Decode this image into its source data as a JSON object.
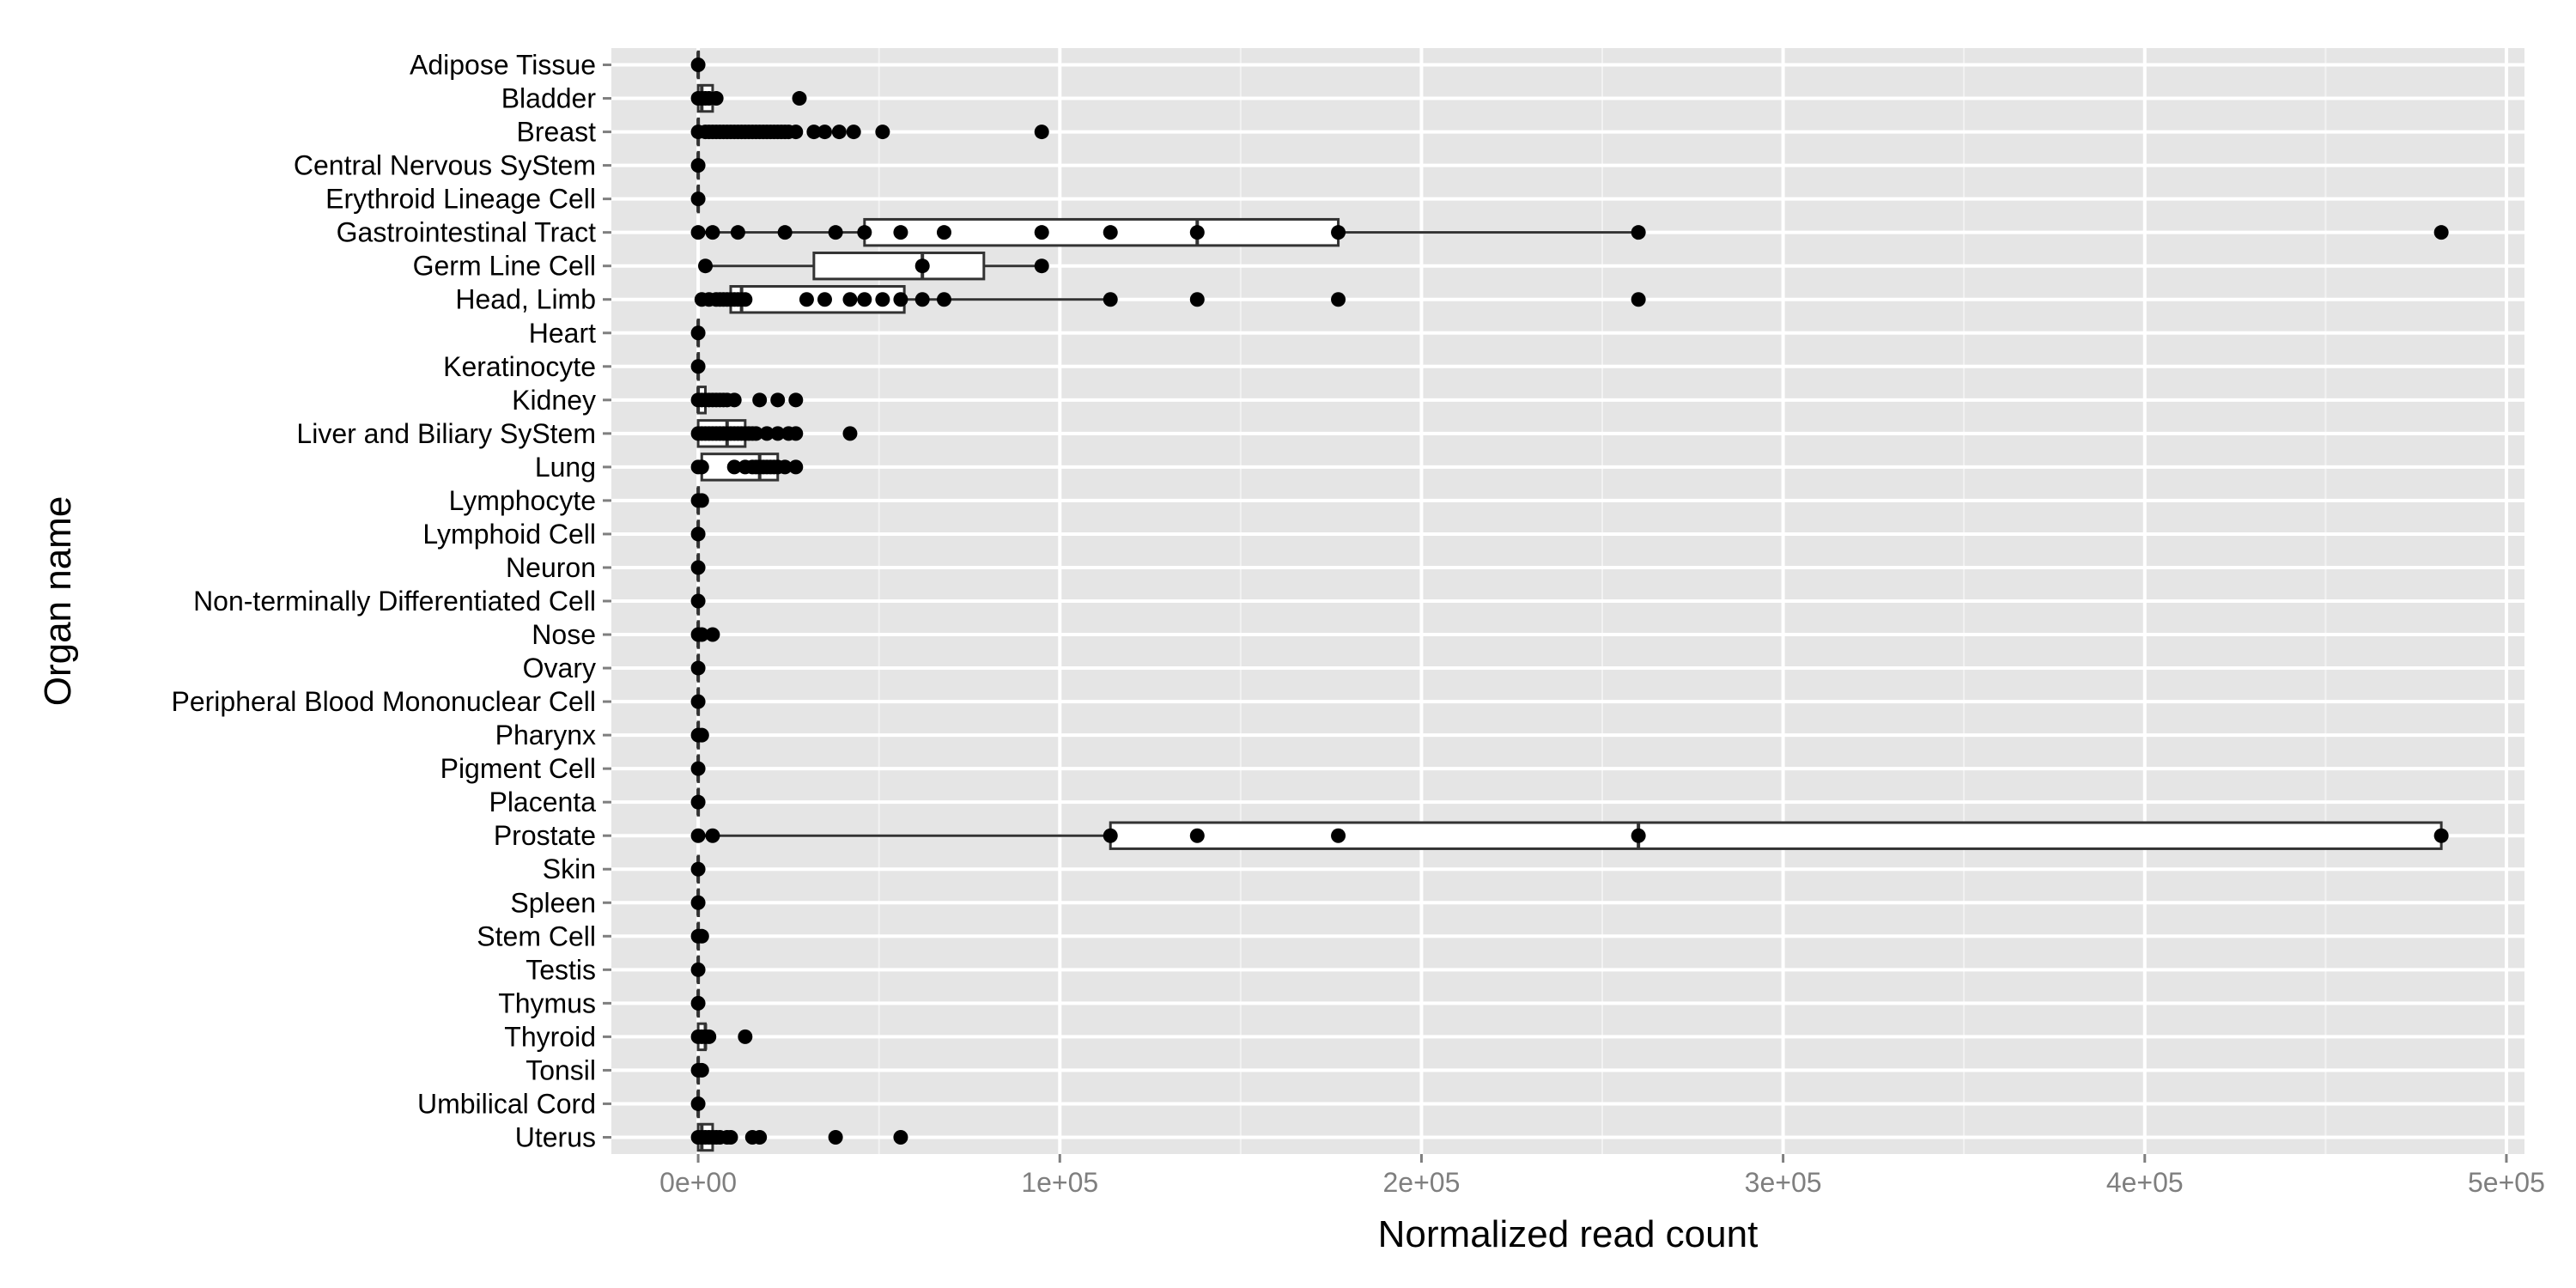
{
  "chart_data": {
    "type": "boxplot",
    "orientation": "horizontal",
    "xlabel": "Normalized read count",
    "ylabel": "Organ name",
    "xlim": [
      -24000,
      505000
    ],
    "x_ticks": [
      0,
      100000,
      200000,
      300000,
      400000,
      500000
    ],
    "x_tick_labels": [
      "0e+00",
      "1e+05",
      "2e+05",
      "3e+05",
      "4e+05",
      "5e+05"
    ],
    "grid": true,
    "background": "#e5e5e5",
    "categories": [
      "Adipose Tissue",
      "Bladder",
      "Breast",
      "Central Nervous SyStem",
      "Erythroid Lineage Cell",
      "Gastrointestinal Tract",
      "Germ Line Cell",
      "Head, Limb",
      "Heart",
      "Keratinocyte",
      "Kidney",
      "Liver and Biliary SyStem",
      "Lung",
      "Lymphocyte",
      "Lymphoid Cell",
      "Neuron",
      "Non-terminally Differentiated Cell",
      "Nose",
      "Ovary",
      "Peripheral Blood Mononuclear Cell",
      "Pharynx",
      "Pigment Cell",
      "Placenta",
      "Prostate",
      "Skin",
      "Spleen",
      "Stem Cell",
      "Testis",
      "Thymus",
      "Thyroid",
      "Tonsil",
      "Umbilical Cord",
      "Uterus"
    ],
    "boxes": [
      {
        "q1": 0,
        "median": 0,
        "q3": 0,
        "whisker_low": 0,
        "whisker_high": 0
      },
      {
        "q1": 0,
        "median": 1000,
        "q3": 4000,
        "whisker_low": 0,
        "whisker_high": 6000
      },
      {
        "q1": 0,
        "median": 0,
        "q3": 0,
        "whisker_low": 0,
        "whisker_high": 0
      },
      {
        "q1": 0,
        "median": 0,
        "q3": 0,
        "whisker_low": 0,
        "whisker_high": 0
      },
      {
        "q1": 0,
        "median": 0,
        "q3": 0,
        "whisker_low": 0,
        "whisker_high": 0
      },
      {
        "q1": 46000,
        "median": 138000,
        "q3": 177000,
        "whisker_low": 0,
        "whisker_high": 260000
      },
      {
        "q1": 32000,
        "median": 62000,
        "q3": 79000,
        "whisker_low": 2000,
        "whisker_high": 95000
      },
      {
        "q1": 9000,
        "median": 12000,
        "q3": 57000,
        "whisker_low": 1000,
        "whisker_high": 114000
      },
      {
        "q1": 0,
        "median": 0,
        "q3": 0,
        "whisker_low": 0,
        "whisker_high": 0
      },
      {
        "q1": 0,
        "median": 0,
        "q3": 0,
        "whisker_low": 0,
        "whisker_high": 0
      },
      {
        "q1": 0,
        "median": 0,
        "q3": 2000,
        "whisker_low": 0,
        "whisker_high": 4000
      },
      {
        "q1": 0,
        "median": 8000,
        "q3": 13000,
        "whisker_low": 0,
        "whisker_high": 27000
      },
      {
        "q1": 1000,
        "median": 17000,
        "q3": 22000,
        "whisker_low": 0,
        "whisker_high": 27000
      },
      {
        "q1": 0,
        "median": 0,
        "q3": 0,
        "whisker_low": 0,
        "whisker_high": 0
      },
      {
        "q1": 0,
        "median": 0,
        "q3": 0,
        "whisker_low": 0,
        "whisker_high": 0
      },
      {
        "q1": 0,
        "median": 0,
        "q3": 0,
        "whisker_low": 0,
        "whisker_high": 0
      },
      {
        "q1": 0,
        "median": 0,
        "q3": 0,
        "whisker_low": 0,
        "whisker_high": 0
      },
      {
        "q1": 0,
        "median": 0,
        "q3": 0,
        "whisker_low": 0,
        "whisker_high": 0
      },
      {
        "q1": 0,
        "median": 0,
        "q3": 0,
        "whisker_low": 0,
        "whisker_high": 0
      },
      {
        "q1": 0,
        "median": 0,
        "q3": 0,
        "whisker_low": 0,
        "whisker_high": 0
      },
      {
        "q1": 0,
        "median": 0,
        "q3": 0,
        "whisker_low": 0,
        "whisker_high": 0
      },
      {
        "q1": 0,
        "median": 0,
        "q3": 0,
        "whisker_low": 0,
        "whisker_high": 0
      },
      {
        "q1": 0,
        "median": 0,
        "q3": 0,
        "whisker_low": 0,
        "whisker_high": 0
      },
      {
        "q1": 114000,
        "median": 260000,
        "q3": 482000,
        "whisker_low": 0,
        "whisker_high": 482000
      },
      {
        "q1": 0,
        "median": 0,
        "q3": 0,
        "whisker_low": 0,
        "whisker_high": 0
      },
      {
        "q1": 0,
        "median": 0,
        "q3": 0,
        "whisker_low": 0,
        "whisker_high": 0
      },
      {
        "q1": 0,
        "median": 0,
        "q3": 0,
        "whisker_low": 0,
        "whisker_high": 0
      },
      {
        "q1": 0,
        "median": 0,
        "q3": 0,
        "whisker_low": 0,
        "whisker_high": 0
      },
      {
        "q1": 0,
        "median": 0,
        "q3": 0,
        "whisker_low": 0,
        "whisker_high": 0
      },
      {
        "q1": 0,
        "median": 2000,
        "q3": 2000,
        "whisker_low": 0,
        "whisker_high": 3000
      },
      {
        "q1": 0,
        "median": 0,
        "q3": 0,
        "whisker_low": 0,
        "whisker_high": 0
      },
      {
        "q1": 0,
        "median": 0,
        "q3": 0,
        "whisker_low": 0,
        "whisker_high": 0
      },
      {
        "q1": 0,
        "median": 1000,
        "q3": 4000,
        "whisker_low": 0,
        "whisker_high": 7000
      }
    ],
    "points": [
      [
        0
      ],
      [
        0,
        1000,
        2000,
        3000,
        5000,
        28000
      ],
      [
        0,
        2000,
        3000,
        4000,
        5000,
        6000,
        7000,
        8000,
        9000,
        10000,
        11000,
        12000,
        13000,
        14000,
        15000,
        16000,
        17000,
        18000,
        19000,
        20000,
        21000,
        22000,
        23000,
        24000,
        25000,
        27000,
        32000,
        35000,
        39000,
        43000,
        51000,
        95000
      ],
      [
        0
      ],
      [
        0
      ],
      [
        0,
        4000,
        11000,
        24000,
        38000,
        46000,
        56000,
        68000,
        95000,
        114000,
        138000,
        177000,
        260000,
        482000
      ],
      [
        2000,
        62000,
        95000
      ],
      [
        1000,
        3000,
        5000,
        6000,
        7000,
        8000,
        9000,
        10000,
        11000,
        12000,
        13000,
        30000,
        35000,
        42000,
        46000,
        51000,
        56000,
        62000,
        68000,
        114000,
        138000,
        177000,
        260000
      ],
      [
        0
      ],
      [
        0
      ],
      [
        0,
        1000,
        2000,
        3000,
        4000,
        5000,
        6000,
        7000,
        8000,
        10000,
        17000,
        22000,
        27000
      ],
      [
        0,
        1000,
        2000,
        3000,
        4000,
        5000,
        6000,
        7000,
        8000,
        9000,
        10000,
        11000,
        12000,
        13000,
        14000,
        15000,
        16000,
        19000,
        22000,
        25000,
        27000,
        42000
      ],
      [
        0,
        1000,
        10000,
        13000,
        15000,
        16000,
        17000,
        18000,
        19000,
        20000,
        21000,
        22000,
        24000,
        27000
      ],
      [
        0,
        1000
      ],
      [
        0
      ],
      [
        0
      ],
      [
        0
      ],
      [
        0,
        1000,
        4000
      ],
      [
        0
      ],
      [
        0
      ],
      [
        0,
        1000
      ],
      [
        0
      ],
      [
        0
      ],
      [
        0,
        4000,
        114000,
        138000,
        177000,
        260000,
        482000
      ],
      [
        0
      ],
      [
        0
      ],
      [
        0,
        1000
      ],
      [
        0
      ],
      [
        0
      ],
      [
        0,
        1000,
        2000,
        3000,
        13000
      ],
      [
        0,
        1000
      ],
      [
        0
      ],
      [
        0,
        1000,
        2000,
        3000,
        4000,
        5000,
        6000,
        8000,
        9000,
        15000,
        17000,
        38000,
        56000
      ]
    ]
  }
}
